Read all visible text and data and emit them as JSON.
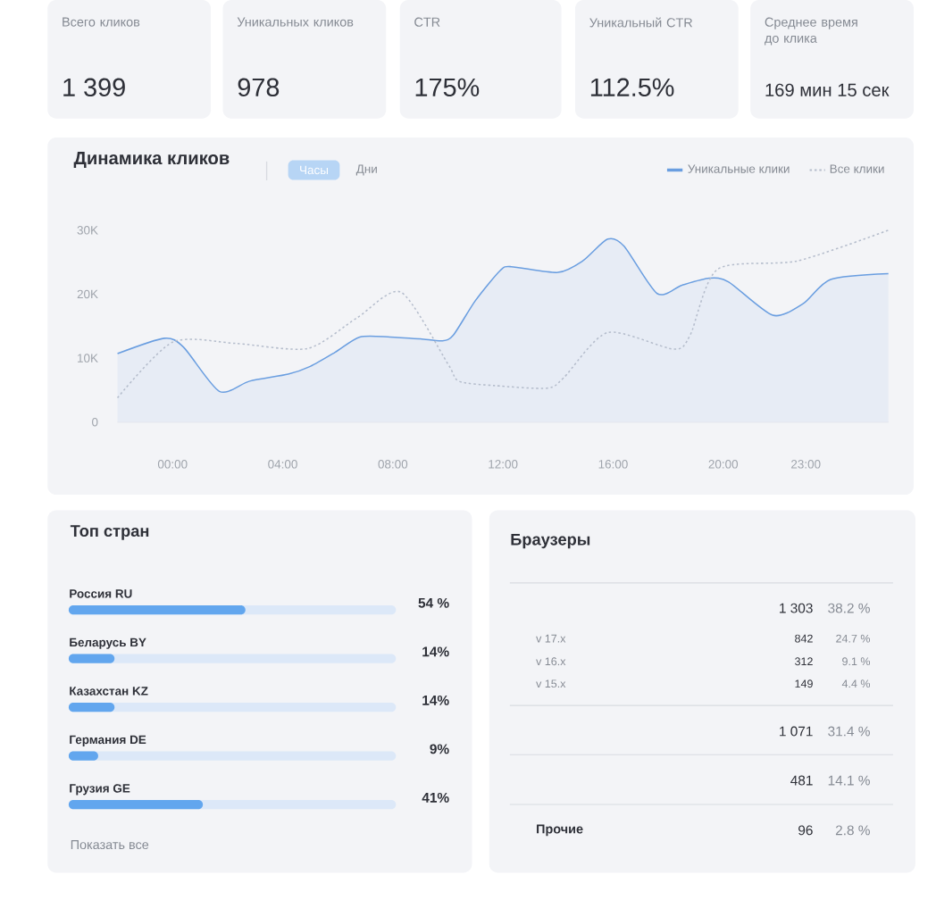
{
  "chart_data": [
    {
      "type": "other",
      "title": "Всего кликов",
      "annotations": [
        "1 399"
      ]
    },
    {
      "type": "other",
      "title": "Уникальных кликов",
      "annotations": [
        "978"
      ]
    },
    {
      "type": "other",
      "title": "CTR",
      "annotations": [
        "175%"
      ]
    },
    {
      "type": "other",
      "title": "Уникальный CTR",
      "annotations": [
        "112.5%"
      ]
    },
    {
      "type": "other",
      "title": "Среднее время до клика",
      "annotations": [
        "169 мин 15 сек"
      ]
    },
    {
      "type": "line",
      "title": "Динамика кликов",
      "annotations": [
        "Часы",
        "Дни"
      ],
      "legend": "top right",
      "xlim": [
        -2,
        26
      ],
      "xticks": [
        {
          "value": 0,
          "label": "00:00"
        },
        {
          "value": 4,
          "label": "04:00"
        },
        {
          "value": 8,
          "label": "08:00"
        },
        {
          "value": 12,
          "label": "12:00"
        },
        {
          "value": 16,
          "label": "16:00"
        },
        {
          "value": 20,
          "label": "20:00"
        },
        {
          "value": 23,
          "label": "23:00"
        }
      ],
      "ylim": [
        0,
        30000
      ],
      "yticks": [
        0,
        {
          "value": 10000,
          "label": "10K"
        },
        {
          "value": 20000,
          "label": "20K"
        },
        {
          "value": 30000,
          "label": "30K"
        }
      ],
      "series": [
        {
          "name": "Уникальные клики",
          "type": "area",
          "color": "#6a9ee0",
          "x": [
            -2,
            -0.3,
            0.4,
            1.7,
            2.8,
            4.2,
            5.0,
            5.9,
            6.8,
            7.9,
            9.0,
            9.8,
            10.2,
            11.0,
            11.9,
            12.3,
            14.0,
            14.9,
            15.8,
            16.4,
            17.6,
            18.5,
            19.5,
            20.2,
            21.8,
            22.9,
            23.9,
            26
          ],
          "values": [
            10700,
            13100,
            11700,
            4800,
            6400,
            7500,
            8700,
            10900,
            13300,
            13300,
            13000,
            12700,
            13600,
            19000,
            23700,
            24300,
            23400,
            25200,
            28600,
            27500,
            20100,
            21400,
            22500,
            21900,
            16700,
            18500,
            22300,
            23200
          ]
        },
        {
          "name": "Все клики",
          "color": "#b5bdcc",
          "line_style": "dotted",
          "x": [
            -2,
            0.0,
            2.3,
            4.9,
            6.7,
            8.3,
            10.0,
            10.4,
            11.7,
            13.6,
            14.2,
            15.8,
            18.2,
            18.8,
            19.8,
            22.7,
            26
          ],
          "values": [
            3800,
            12500,
            12300,
            11500,
            16300,
            20300,
            9100,
            6400,
            5700,
            5300,
            6900,
            14000,
            11400,
            13600,
            23900,
            25200,
            30000
          ]
        }
      ]
    },
    {
      "type": "bar",
      "orientation": "horizontal",
      "title": "Топ стран",
      "categories": [
        "Россия RU",
        "Беларусь BY",
        "Казахстан KZ",
        "Германия DE",
        "Грузия GE"
      ],
      "values": [
        54,
        14,
        14,
        9,
        41
      ],
      "value_labels": [
        "54 %",
        "14%",
        "14%",
        "9%",
        "41%"
      ],
      "color": "#62a6ee",
      "xlim": [
        0,
        100
      ],
      "tick_labels": "y",
      "annotations": [
        "Показать все"
      ]
    },
    {
      "type": "other",
      "title": "Браузеры",
      "annotations": [
        "1 303",
        "38.2 %",
        "v 17.x",
        "842",
        "24.7 %",
        "v 16.x",
        "312",
        "9.1 %",
        "v 15.x",
        "149",
        "4.4 %",
        "1 071",
        "31.4 %",
        "481",
        "14.1 %",
        "Прочие",
        "96",
        "2.8 %"
      ]
    }
  ]
}
